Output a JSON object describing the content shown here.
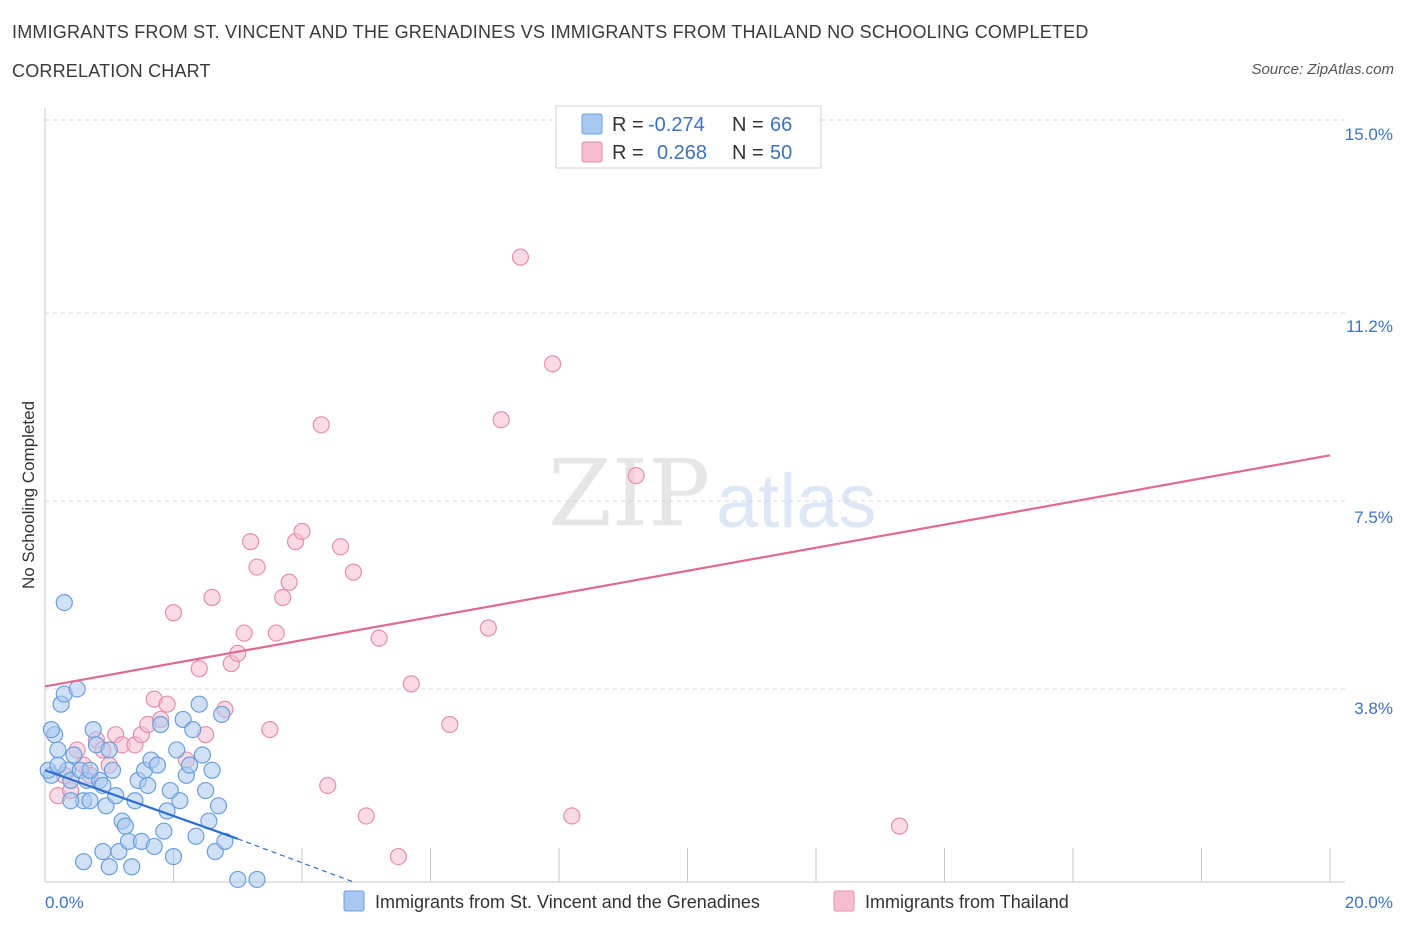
{
  "header": {
    "title": "IMMIGRANTS FROM ST. VINCENT AND THE GRENADINES VS IMMIGRANTS FROM THAILAND NO SCHOOLING COMPLETED",
    "subtitle": "CORRELATION CHART",
    "source": "Source: ZipAtlas.com"
  },
  "watermark": {
    "zip": "ZIP",
    "atlas": "atlas"
  },
  "legend": {
    "rows": [
      {
        "r_label": "R =",
        "r_value": "-0.274",
        "n_label": "N =",
        "n_value": "66"
      },
      {
        "r_label": "R =",
        "r_value": "0.268",
        "n_label": "N =",
        "n_value": "50"
      }
    ]
  },
  "colors": {
    "blue_fill": "#a9c8f0",
    "blue_stroke": "#6a9fdc",
    "blue_line": "#2e6fd0",
    "pink_fill": "#f6bdd0",
    "pink_stroke": "#e58fab",
    "pink_line": "#e06a94",
    "axis_text": "#3d72c4",
    "grid": "#d9d9d9"
  },
  "chart_data": {
    "type": "scatter",
    "title": "IMMIGRANTS FROM ST. VINCENT AND THE GRENADINES VS IMMIGRANTS FROM THAILAND NO SCHOOLING COMPLETED",
    "xlabel": "",
    "ylabel": "No Schooling Completed",
    "xlim": [
      0,
      20
    ],
    "ylim": [
      0,
      15
    ],
    "x_tick_labels": [
      "0.0%",
      "20.0%"
    ],
    "y_ticks": [
      3.8,
      7.5,
      11.2,
      15.0
    ],
    "y_tick_labels": [
      "3.8%",
      "7.5%",
      "11.2%",
      "15.0%"
    ],
    "grid": true,
    "series": [
      {
        "name": "Immigrants from St. Vincent and the Grenadines",
        "color": "blue",
        "R": -0.274,
        "N": 66,
        "trend": {
          "x": [
            0.0,
            3.0
          ],
          "y": [
            2.2,
            0.85
          ],
          "dashed_to": [
            4.8,
            0.0
          ]
        },
        "points": [
          [
            0.1,
            2.1
          ],
          [
            0.15,
            2.9
          ],
          [
            0.2,
            2.6
          ],
          [
            0.25,
            3.5
          ],
          [
            0.3,
            3.7
          ],
          [
            0.35,
            2.2
          ],
          [
            0.4,
            2.0
          ],
          [
            0.45,
            2.5
          ],
          [
            0.5,
            3.8
          ],
          [
            0.55,
            2.2
          ],
          [
            0.6,
            1.6
          ],
          [
            0.65,
            2.0
          ],
          [
            0.7,
            1.6
          ],
          [
            0.75,
            3.0
          ],
          [
            0.8,
            2.7
          ],
          [
            0.85,
            2.0
          ],
          [
            0.9,
            1.9
          ],
          [
            0.95,
            1.5
          ],
          [
            1.0,
            2.6
          ],
          [
            1.05,
            2.2
          ],
          [
            1.1,
            1.7
          ],
          [
            1.15,
            0.6
          ],
          [
            1.2,
            1.2
          ],
          [
            1.25,
            1.1
          ],
          [
            1.3,
            0.8
          ],
          [
            1.35,
            0.3
          ],
          [
            1.4,
            1.6
          ],
          [
            1.45,
            2.0
          ],
          [
            1.5,
            0.8
          ],
          [
            1.55,
            2.2
          ],
          [
            1.6,
            1.9
          ],
          [
            1.65,
            2.4
          ],
          [
            1.7,
            0.7
          ],
          [
            1.75,
            2.3
          ],
          [
            1.8,
            3.1
          ],
          [
            1.85,
            1.0
          ],
          [
            1.9,
            1.4
          ],
          [
            1.95,
            1.8
          ],
          [
            2.0,
            0.5
          ],
          [
            2.05,
            2.6
          ],
          [
            2.1,
            1.6
          ],
          [
            2.15,
            3.2
          ],
          [
            2.2,
            2.1
          ],
          [
            2.25,
            2.3
          ],
          [
            2.3,
            3.0
          ],
          [
            2.35,
            0.9
          ],
          [
            2.4,
            3.5
          ],
          [
            2.45,
            2.5
          ],
          [
            2.5,
            1.8
          ],
          [
            2.55,
            1.2
          ],
          [
            2.6,
            2.2
          ],
          [
            2.65,
            0.6
          ],
          [
            2.7,
            1.5
          ],
          [
            2.75,
            3.3
          ],
          [
            2.8,
            0.8
          ],
          [
            0.3,
            5.5
          ],
          [
            0.6,
            0.4
          ],
          [
            0.9,
            0.6
          ],
          [
            1.0,
            0.3
          ],
          [
            0.05,
            2.2
          ],
          [
            0.1,
            3.0
          ],
          [
            0.2,
            2.3
          ],
          [
            3.0,
            0.05
          ],
          [
            3.3,
            0.05
          ],
          [
            0.4,
            1.6
          ],
          [
            0.7,
            2.2
          ]
        ]
      },
      {
        "name": "Immigrants from Thailand",
        "color": "pink",
        "R": 0.268,
        "N": 50,
        "trend": {
          "x": [
            0.0,
            20.0
          ],
          "y": [
            3.85,
            8.4
          ]
        },
        "points": [
          [
            0.2,
            1.7
          ],
          [
            0.3,
            2.1
          ],
          [
            0.4,
            1.8
          ],
          [
            0.5,
            2.6
          ],
          [
            0.6,
            2.3
          ],
          [
            0.7,
            2.1
          ],
          [
            0.8,
            2.8
          ],
          [
            0.9,
            2.6
          ],
          [
            1.0,
            2.3
          ],
          [
            1.1,
            2.9
          ],
          [
            1.2,
            2.7
          ],
          [
            1.4,
            2.7
          ],
          [
            1.5,
            2.9
          ],
          [
            1.6,
            3.1
          ],
          [
            1.7,
            3.6
          ],
          [
            1.8,
            3.2
          ],
          [
            1.9,
            3.5
          ],
          [
            2.0,
            5.3
          ],
          [
            2.2,
            2.4
          ],
          [
            2.4,
            4.2
          ],
          [
            2.5,
            2.9
          ],
          [
            2.6,
            5.6
          ],
          [
            2.8,
            3.4
          ],
          [
            2.9,
            4.3
          ],
          [
            3.0,
            4.5
          ],
          [
            3.1,
            4.9
          ],
          [
            3.2,
            6.7
          ],
          [
            3.3,
            6.2
          ],
          [
            3.5,
            3.0
          ],
          [
            3.6,
            4.9
          ],
          [
            3.7,
            5.6
          ],
          [
            3.8,
            5.9
          ],
          [
            3.9,
            6.7
          ],
          [
            4.0,
            6.9
          ],
          [
            4.3,
            9.0
          ],
          [
            4.4,
            1.9
          ],
          [
            4.6,
            6.6
          ],
          [
            4.8,
            6.1
          ],
          [
            5.0,
            1.3
          ],
          [
            5.2,
            4.8
          ],
          [
            5.5,
            0.5
          ],
          [
            5.7,
            3.9
          ],
          [
            6.3,
            3.1
          ],
          [
            6.9,
            5.0
          ],
          [
            7.1,
            9.1
          ],
          [
            7.4,
            12.3
          ],
          [
            7.9,
            10.2
          ],
          [
            8.2,
            1.3
          ],
          [
            9.2,
            8.0
          ],
          [
            13.3,
            1.1
          ]
        ]
      }
    ]
  }
}
